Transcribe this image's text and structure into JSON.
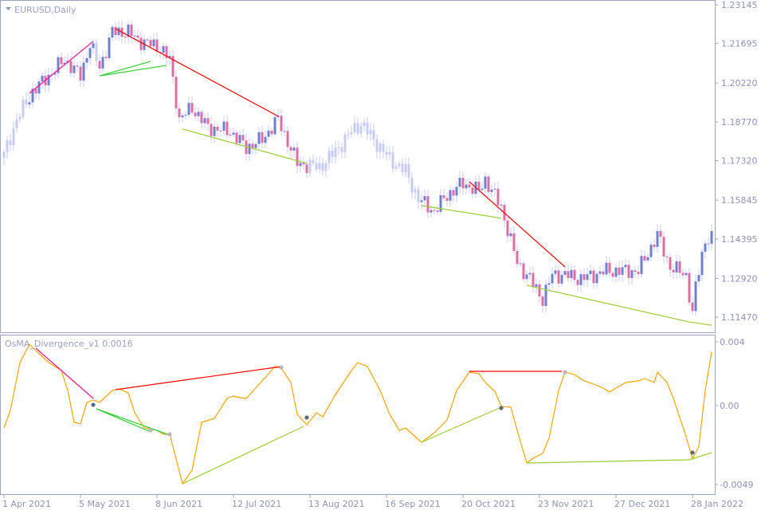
{
  "chart_data": [
    {
      "type": "candlestick",
      "title": "EURUSD,Daily",
      "symbol": "EURUSD",
      "timeframe": "Daily",
      "ylim": [
        1.1117,
        1.2325
      ],
      "y_ticks": [
        "1.23145",
        "1.21695",
        "1.20220",
        "1.18770",
        "1.17320",
        "1.15845",
        "1.14395",
        "1.12920",
        "1.11470"
      ],
      "x_ticks": [
        {
          "bar": 0,
          "label": "1 Apr 2021"
        },
        {
          "bar": 24,
          "label": "5 May 2021"
        },
        {
          "bar": 48,
          "label": "8 Jun 2021"
        },
        {
          "bar": 72,
          "label": "12 Jul 2021"
        },
        {
          "bar": 96,
          "label": "13 Aug 2021"
        },
        {
          "bar": 120,
          "label": "16 Sep 2021"
        },
        {
          "bar": 144,
          "label": "20 Oct 2021"
        },
        {
          "bar": 168,
          "label": "23 Nov 2021"
        },
        {
          "bar": 192,
          "label": "27 Dec 2021"
        },
        {
          "bar": 216,
          "label": "28 Jan 2022"
        }
      ],
      "close_path": [
        [
          0,
          1.1752
        ],
        [
          4,
          1.1886
        ],
        [
          9,
          1.199
        ],
        [
          14,
          1.2049
        ],
        [
          19,
          1.2109
        ],
        [
          24,
          1.2049
        ],
        [
          27,
          1.2169
        ],
        [
          30,
          1.2079
        ],
        [
          34,
          1.2213
        ],
        [
          39,
          1.2213
        ],
        [
          42,
          1.2183
        ],
        [
          49,
          1.2154
        ],
        [
          52,
          1.2109
        ],
        [
          55,
          1.1886
        ],
        [
          59,
          1.193
        ],
        [
          64,
          1.1856
        ],
        [
          71,
          1.1841
        ],
        [
          76,
          1.1781
        ],
        [
          81,
          1.1811
        ],
        [
          86,
          1.1886
        ],
        [
          92,
          1.1722
        ],
        [
          99,
          1.1707
        ],
        [
          104,
          1.1767
        ],
        [
          109,
          1.1841
        ],
        [
          112,
          1.1871
        ],
        [
          116,
          1.1811
        ],
        [
          121,
          1.1737
        ],
        [
          126,
          1.1692
        ],
        [
          130,
          1.1588
        ],
        [
          135,
          1.1543
        ],
        [
          139,
          1.1603
        ],
        [
          144,
          1.1647
        ],
        [
          149,
          1.1618
        ],
        [
          151,
          1.1662
        ],
        [
          156,
          1.1558
        ],
        [
          161,
          1.135
        ],
        [
          165,
          1.129
        ],
        [
          169,
          1.1216
        ],
        [
          172,
          1.1305
        ],
        [
          176,
          1.1305
        ],
        [
          181,
          1.129
        ],
        [
          189,
          1.132
        ],
        [
          199,
          1.132
        ],
        [
          205,
          1.1454
        ],
        [
          209,
          1.1335
        ],
        [
          214,
          1.1305
        ],
        [
          216,
          1.1156
        ],
        [
          217,
          1.126
        ],
        [
          220,
          1.1439
        ],
        [
          222,
          1.1439
        ]
      ],
      "divergence_lines": [
        {
          "color": "#ff1493",
          "from": [
            8,
            1.1984
          ],
          "to": [
            28,
            1.2178
          ]
        },
        {
          "color": "#ff0000",
          "from": [
            35,
            1.2225
          ],
          "to": [
            86,
            1.1898
          ]
        },
        {
          "color": "#32cd32",
          "from": [
            30,
            1.2049
          ],
          "to": [
            46,
            1.2103
          ]
        },
        {
          "color": "#32cd32",
          "from": [
            30,
            1.2049
          ],
          "to": [
            51,
            1.2088
          ]
        },
        {
          "color": "#9acd32",
          "from": [
            56,
            1.185
          ],
          "to": [
            95,
            1.1722
          ]
        },
        {
          "color": "#9acd32",
          "from": [
            131,
            1.1564
          ],
          "to": [
            156,
            1.1517
          ]
        },
        {
          "color": "#ff0000",
          "from": [
            146,
            1.1653
          ],
          "to": [
            176,
            1.1335
          ]
        },
        {
          "color": "#9acd32",
          "from": [
            164,
            1.1266
          ],
          "to": [
            215,
            1.1129
          ]
        },
        {
          "color": "#9acd32",
          "from": [
            215,
            1.1129
          ],
          "to": [
            222,
            1.1117
          ]
        }
      ],
      "candle_colors": {
        "neutral": "#c8cdec",
        "bull": "#6f7fcf",
        "bear": "#dc6f9f"
      }
    },
    {
      "type": "line",
      "title": "OsMA_Divergence_v1 0.0016",
      "ylim": [
        -0.0049,
        0.004
      ],
      "y_ticks": [
        "0.004",
        "0.00",
        "-0.0049"
      ],
      "line_color": "#ffa500",
      "values": [
        [
          0,
          -0.0014
        ],
        [
          2,
          -0.0003
        ],
        [
          5,
          0.0027
        ],
        [
          8,
          0.00385
        ],
        [
          10,
          0.00345
        ],
        [
          14,
          0.0027
        ],
        [
          18,
          0.0022
        ],
        [
          20,
          0.00095
        ],
        [
          22,
          -0.00105
        ],
        [
          24,
          -0.00115
        ],
        [
          26,
          0.0002
        ],
        [
          28,
          0.00035
        ],
        [
          30,
          0.0002
        ],
        [
          34,
          0.00095
        ],
        [
          36,
          0.00105
        ],
        [
          39,
          0.0008
        ],
        [
          41,
          -0.00045
        ],
        [
          44,
          -0.0014
        ],
        [
          48,
          -0.00155
        ],
        [
          50,
          -0.0018
        ],
        [
          52,
          -0.0018
        ],
        [
          56,
          -0.0049
        ],
        [
          59,
          -0.00405
        ],
        [
          62,
          -0.00105
        ],
        [
          66,
          -0.0008
        ],
        [
          70,
          0.00045
        ],
        [
          72,
          0.0006
        ],
        [
          74,
          0.0005
        ],
        [
          76,
          0.00045
        ],
        [
          81,
          0.00155
        ],
        [
          85,
          0.00245
        ],
        [
          87,
          0.00235
        ],
        [
          90,
          0.00145
        ],
        [
          92,
          -0.00055
        ],
        [
          95,
          -0.0012
        ],
        [
          98,
          -0.00045
        ],
        [
          100,
          -0.0007
        ],
        [
          104,
          0.0007
        ],
        [
          109,
          0.0022
        ],
        [
          111,
          0.0027
        ],
        [
          114,
          0.00245
        ],
        [
          118,
          0.00095
        ],
        [
          121,
          -0.00055
        ],
        [
          124,
          -0.00155
        ],
        [
          126,
          -0.0014
        ],
        [
          129,
          -0.00195
        ],
        [
          131,
          -0.0023
        ],
        [
          135,
          -0.0017
        ],
        [
          139,
          -0.0009
        ],
        [
          142,
          0.00095
        ],
        [
          146,
          0.0021
        ],
        [
          149,
          0.002
        ],
        [
          151,
          0.00145
        ],
        [
          154,
          0.0009
        ],
        [
          156,
          -5e-05
        ],
        [
          159,
          -0.0001
        ],
        [
          161,
          -0.00155
        ],
        [
          164,
          -0.0036
        ],
        [
          166,
          -0.0033
        ],
        [
          169,
          -0.003
        ],
        [
          171,
          -0.00205
        ],
        [
          174,
          0.00095
        ],
        [
          176,
          0.0021
        ],
        [
          179,
          0.00195
        ],
        [
          182,
          0.00155
        ],
        [
          185,
          0.00135
        ],
        [
          188,
          0.0011
        ],
        [
          190,
          0.00085
        ],
        [
          192,
          0.0011
        ],
        [
          195,
          0.00145
        ],
        [
          199,
          0.00155
        ],
        [
          201,
          0.0017
        ],
        [
          204,
          0.00145
        ],
        [
          205,
          0.0021
        ],
        [
          208,
          0.00145
        ],
        [
          210,
          0.00045
        ],
        [
          214,
          -0.00195
        ],
        [
          216,
          -0.00335
        ],
        [
          218,
          -0.00255
        ],
        [
          220,
          0.00095
        ],
        [
          222,
          0.00335
        ]
      ],
      "divergence_lines": [
        {
          "color": "#ff1493",
          "from": [
            10,
            0.0036
          ],
          "to": [
            28,
            0.00045
          ]
        },
        {
          "color": "#ff0000",
          "from": [
            35,
            0.001
          ],
          "to": [
            87,
            0.00245
          ]
        },
        {
          "color": "#32cd32",
          "from": [
            29,
            -0.0002
          ],
          "to": [
            46,
            -0.00165
          ]
        },
        {
          "color": "#32cd32",
          "from": [
            29,
            -0.0002
          ],
          "to": [
            52,
            -0.00185
          ]
        },
        {
          "color": "#9acd32",
          "from": [
            56,
            -0.0049
          ],
          "to": [
            94,
            -0.0013
          ]
        },
        {
          "color": "#9acd32",
          "from": [
            131,
            -0.0023
          ],
          "to": [
            156,
            -0.0001
          ]
        },
        {
          "color": "#ff0000",
          "from": [
            146,
            0.00215
          ],
          "to": [
            175,
            0.00215
          ]
        },
        {
          "color": "#9acd32",
          "from": [
            164,
            -0.0036
          ],
          "to": [
            215,
            -0.0034
          ]
        },
        {
          "color": "#9acd32",
          "from": [
            215,
            -0.0034
          ],
          "to": [
            222,
            -0.00295
          ]
        }
      ],
      "signal_dots": [
        {
          "bar": 28,
          "value": 5e-05,
          "color": "#5a6a80"
        },
        {
          "bar": 46,
          "value": -0.00155,
          "color": "#b8b8c0"
        },
        {
          "bar": 52,
          "value": -0.0018,
          "color": "#b8b8c0"
        },
        {
          "bar": 87,
          "value": 0.0024,
          "color": "#b8b8c0"
        },
        {
          "bar": 95,
          "value": -0.00075,
          "color": "#5a6a80"
        },
        {
          "bar": 156,
          "value": -0.00015,
          "color": "#5a6a80"
        },
        {
          "bar": 176,
          "value": 0.0021,
          "color": "#b8b8c0"
        },
        {
          "bar": 216,
          "value": -0.00295,
          "color": "#5a6a80"
        }
      ]
    }
  ]
}
